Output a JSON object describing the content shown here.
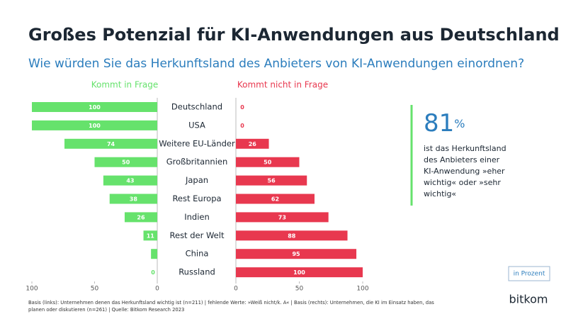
{
  "chart_data": {
    "type": "butterfly",
    "title": "Großes Potenzial für KI-Anwendungen aus Deutschland",
    "subtitle": "Wie würden Sie das Herkunftsland des Anbieters von KI-Anwendungen einordnen?",
    "categories": [
      "Deutschland",
      "USA",
      "Weitere EU-Länder",
      "Großbritannien",
      "Japan",
      "Rest Europa",
      "Indien",
      "Rest der Welt",
      "China",
      "Russland"
    ],
    "series": [
      {
        "name": "Kommt in Frage",
        "color": "#66e26c",
        "values": [
          100,
          100,
          74,
          50,
          43,
          38,
          26,
          11,
          5,
          0
        ]
      },
      {
        "name": "Kommt nicht in Frage",
        "color": "#e8384f",
        "axis": "x2",
        "values": [
          0,
          0,
          26,
          50,
          56,
          62,
          73,
          88,
          95,
          100
        ]
      }
    ],
    "xlim": [
      0,
      100
    ],
    "xticks": [
      0,
      50,
      100
    ],
    "xreverse": true,
    "x2lim": [
      0,
      100
    ],
    "x2ticks": [
      0,
      50,
      100
    ],
    "unit_note": "in Prozent",
    "source": [
      "Basis (links): Unternehmen denen das Herkunftsland wichtig ist (n=211) | fehlende Werte: »Weiß nicht/k. A« | Basis (rechts): Unternehmen, die KI im Einsatz haben, das",
      "planen oder diskutieren (n=261) | Quelle: Bitkom Research 2023"
    ],
    "brand": "bitkom"
  },
  "callout": {
    "value": "81",
    "unit": "%",
    "lines": [
      "ist das Herkunftsland",
      "des Anbieters einer",
      "KI-Anwendung »eher",
      "wichtig« oder »sehr",
      "wichtig«"
    ]
  }
}
